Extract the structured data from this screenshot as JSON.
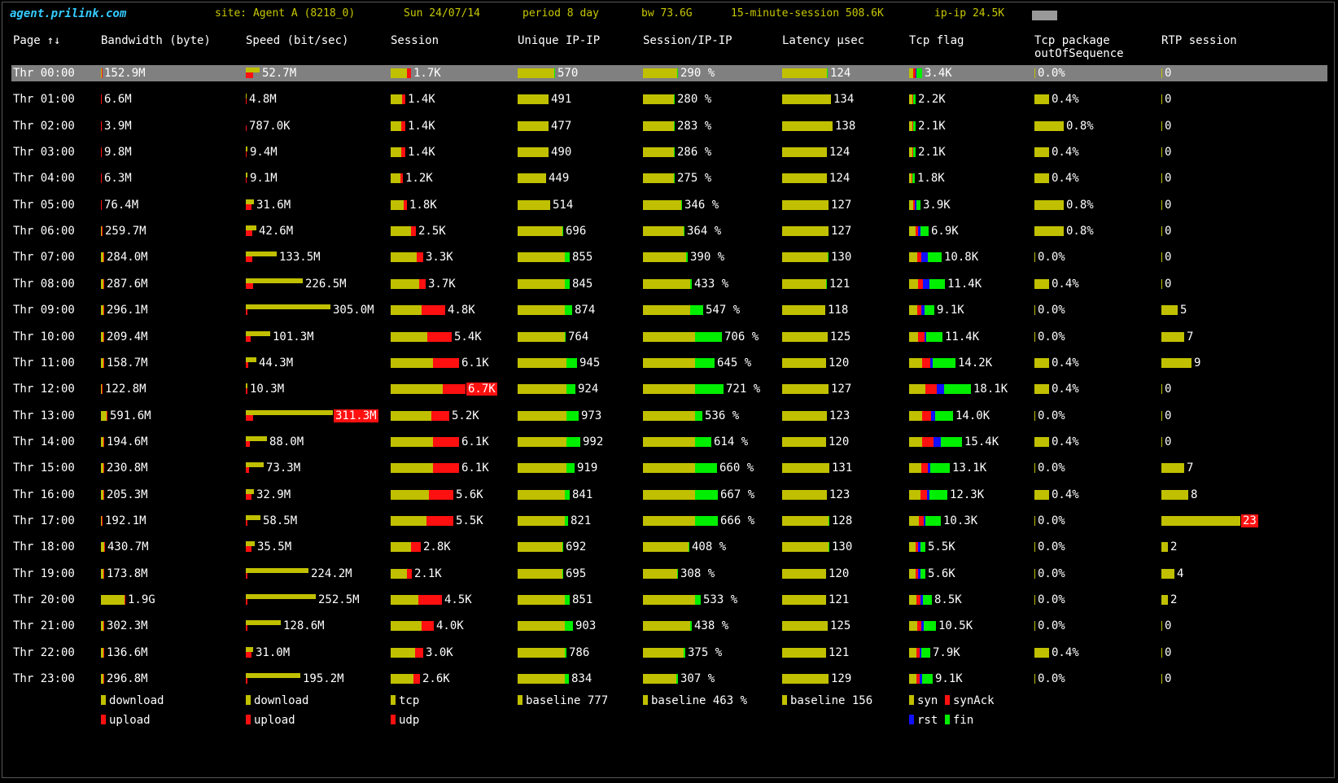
{
  "top": {
    "logo": "agent.prilink.com",
    "site": "site: Agent A (8218_0)",
    "date": "Sun 24/07/14",
    "period": "period 8 day",
    "bw": "bw 73.6G",
    "session15": "15-minute-session 508.6K",
    "ipip": "ip-ip 24.5K"
  },
  "headers": {
    "page": "Page",
    "sort_arrows": "↑↓",
    "bandwidth": "Bandwidth (byte)",
    "speed": "Speed (bit/sec)",
    "session": "Session",
    "unique": "Unique IP-IP",
    "sesipip": "Session/IP-IP",
    "latency": "Latency µsec",
    "tcpflag": "Tcp flag",
    "tcppkg1": "Tcp package",
    "tcppkg2": "outOfSequence",
    "rtp": "RTP session"
  },
  "colors": {
    "yellow": "#c0c000",
    "red": "#ff1010",
    "green": "#00ee00",
    "blue": "#1010ff"
  },
  "rows": [
    {
      "time": "Thr 00:00",
      "bw": "152.9M",
      "bw_d": 0.9,
      "bw_u": 0.1,
      "sp": "52.7M",
      "sp_d": 17,
      "sp_u": 9,
      "ses": "1.7K",
      "ses_t": 20,
      "ses_u": 5,
      "uip": "570",
      "uip_y": 45,
      "uip_g": 1,
      "sip": "290 %",
      "sip_y": 42,
      "sip_g": 1,
      "lat": "124",
      "lat_y": 55,
      "lat_g": 1,
      "tcp": [
        "5",
        "3",
        "1",
        "7"
      ],
      "tcpl": "3.4K",
      "oos": "0.0%",
      "oos_v": 0,
      "rtp": "0",
      "rtp_v": 0,
      "sel": true
    },
    {
      "time": "Thr 01:00",
      "bw": "6.6M",
      "bw_d": 0,
      "bw_u": 1,
      "sp": "4.8M",
      "sp_d": 1,
      "sp_u": 1,
      "ses": "1.4K",
      "ses_t": 14,
      "ses_u": 4,
      "uip": "491",
      "uip_y": 38,
      "uip_g": 0,
      "sip": "280 %",
      "sip_y": 38,
      "sip_g": 1,
      "lat": "134",
      "lat_y": 60,
      "lat_g": 0,
      "tcp": [
        "4",
        "1",
        "0",
        "3"
      ],
      "tcpl": "2.2K",
      "oos": "0.4%",
      "oos_v": 18,
      "rtp": "0",
      "rtp_v": 0
    },
    {
      "time": "Thr 02:00",
      "bw": "3.9M",
      "bw_d": 0,
      "bw_u": 1,
      "sp": "787.0K",
      "sp_d": 0,
      "sp_u": 1,
      "ses": "1.4K",
      "ses_t": 13,
      "ses_u": 5,
      "uip": "477",
      "uip_y": 38,
      "uip_g": 0,
      "sip": "283 %",
      "sip_y": 38,
      "sip_g": 1,
      "lat": "138",
      "lat_y": 62,
      "lat_g": 0,
      "tcp": [
        "4",
        "1",
        "0",
        "3"
      ],
      "tcpl": "2.1K",
      "oos": "0.8%",
      "oos_v": 36,
      "rtp": "0",
      "rtp_v": 0
    },
    {
      "time": "Thr 03:00",
      "bw": "9.8M",
      "bw_d": 0,
      "bw_u": 1,
      "sp": "9.4M",
      "sp_d": 2,
      "sp_u": 1,
      "ses": "1.4K",
      "ses_t": 13,
      "ses_u": 5,
      "uip": "490",
      "uip_y": 38,
      "uip_g": 0,
      "sip": "286 %",
      "sip_y": 38,
      "sip_g": 1,
      "lat": "124",
      "lat_y": 55,
      "lat_g": 0,
      "tcp": [
        "4",
        "1",
        "0",
        "3"
      ],
      "tcpl": "2.1K",
      "oos": "0.4%",
      "oos_v": 18,
      "rtp": "0",
      "rtp_v": 0
    },
    {
      "time": "Thr 04:00",
      "bw": "6.3M",
      "bw_d": 0,
      "bw_u": 1,
      "sp": "9.1M",
      "sp_d": 2,
      "sp_u": 1,
      "ses": "1.2K",
      "ses_t": 12,
      "ses_u": 3,
      "uip": "449",
      "uip_y": 35,
      "uip_g": 0,
      "sip": "275 %",
      "sip_y": 38,
      "sip_g": 1,
      "lat": "124",
      "lat_y": 55,
      "lat_g": 0,
      "tcp": [
        "3",
        "1",
        "0",
        "3"
      ],
      "tcpl": "1.8K",
      "oos": "0.4%",
      "oos_v": 18,
      "rtp": "0",
      "rtp_v": 0
    },
    {
      "time": "Thr 05:00",
      "bw": "76.4M",
      "bw_d": 0,
      "bw_u": 1,
      "sp": "31.6M",
      "sp_d": 10,
      "sp_u": 7,
      "ses": "1.8K",
      "ses_t": 16,
      "ses_u": 4,
      "uip": "514",
      "uip_y": 40,
      "uip_g": 0,
      "sip": "346 %",
      "sip_y": 47,
      "sip_g": 1,
      "lat": "127",
      "lat_y": 57,
      "lat_g": 0,
      "tcp": [
        "5",
        "2",
        "2",
        "5"
      ],
      "tcpl": "3.9K",
      "oos": "0.8%",
      "oos_v": 36,
      "rtp": "0",
      "rtp_v": 0
    },
    {
      "time": "Thr 06:00",
      "bw": "259.7M",
      "bw_d": 1,
      "bw_u": 1,
      "sp": "42.6M",
      "sp_d": 13,
      "sp_u": 8,
      "ses": "2.5K",
      "ses_t": 25,
      "ses_u": 6,
      "uip": "696",
      "uip_y": 55,
      "uip_g": 1,
      "sip": "364 %",
      "sip_y": 50,
      "sip_g": 1,
      "lat": "127",
      "lat_y": 57,
      "lat_g": 0,
      "tcp": [
        "8",
        "3",
        "3",
        "10"
      ],
      "tcpl": "6.9K",
      "oos": "0.8%",
      "oos_v": 36,
      "rtp": "0",
      "rtp_v": 0
    },
    {
      "time": "Thr 07:00",
      "bw": "284.0M",
      "bw_d": 3,
      "bw_u": 1,
      "sp": "133.5M",
      "sp_d": 38,
      "sp_u": 8,
      "ses": "3.3K",
      "ses_t": 32,
      "ses_u": 8,
      "uip": "855",
      "uip_y": 58,
      "uip_g": 6,
      "sip": "390 %",
      "sip_y": 53,
      "sip_g": 2,
      "lat": "130",
      "lat_y": 56,
      "lat_g": 1,
      "tcp": [
        "10",
        "5",
        "8",
        "17"
      ],
      "tcpl": "10.8K",
      "oos": "0.0%",
      "oos_v": 0,
      "rtp": "0",
      "rtp_v": 0
    },
    {
      "time": "Thr 08:00",
      "bw": "287.6M",
      "bw_d": 3,
      "bw_u": 1,
      "sp": "226.5M",
      "sp_d": 70,
      "sp_u": 9,
      "ses": "3.7K",
      "ses_t": 35,
      "ses_u": 8,
      "uip": "845",
      "uip_y": 58,
      "uip_g": 6,
      "sip": "433 %",
      "sip_y": 58,
      "sip_g": 2,
      "lat": "121",
      "lat_y": 54,
      "lat_g": 1,
      "tcp": [
        "11",
        "6",
        "8",
        "19"
      ],
      "tcpl": "11.4K",
      "oos": "0.4%",
      "oos_v": 18,
      "rtp": "0",
      "rtp_v": 0
    },
    {
      "time": "Thr 09:00",
      "bw": "296.1M",
      "bw_d": 3,
      "bw_u": 1,
      "sp": "305.0M",
      "sp_d": 104,
      "sp_u": 2,
      "ses": "4.8K",
      "ses_t": 38,
      "ses_u": 29,
      "uip": "874",
      "uip_y": 58,
      "uip_g": 9,
      "sip": "547 %",
      "sip_y": 58,
      "sip_g": 16,
      "lat": "118",
      "lat_y": 53,
      "lat_g": 0,
      "tcp": [
        "10",
        "5",
        "4",
        "12"
      ],
      "tcpl": "9.1K",
      "oos": "0.0%",
      "oos_v": 0,
      "rtp": "5",
      "rtp_v": 20
    },
    {
      "time": "Thr 10:00",
      "bw": "209.4M",
      "bw_d": 3,
      "bw_u": 1,
      "sp": "101.3M",
      "sp_d": 30,
      "sp_u": 6,
      "ses": "5.4K",
      "ses_t": 45,
      "ses_u": 30,
      "uip": "764",
      "uip_y": 58,
      "uip_g": 1,
      "sip": "706 %",
      "sip_y": 64,
      "sip_g": 33,
      "lat": "125",
      "lat_y": 56,
      "lat_g": 0,
      "tcp": [
        "11",
        "8",
        "2",
        "20"
      ],
      "tcpl": "11.4K",
      "oos": "0.0%",
      "oos_v": 0,
      "rtp": "7",
      "rtp_v": 28
    },
    {
      "time": "Thr 11:00",
      "bw": "158.7M",
      "bw_d": 3,
      "bw_u": 1,
      "sp": "44.3M",
      "sp_d": 13,
      "sp_u": 3,
      "ses": "6.1K",
      "ses_t": 52,
      "ses_u": 32,
      "uip": "945",
      "uip_y": 60,
      "uip_g": 13,
      "sip": "645 %",
      "sip_y": 64,
      "sip_g": 24,
      "lat": "120",
      "lat_y": 54,
      "lat_g": 0,
      "tcp": [
        "16",
        "10",
        "3",
        "28"
      ],
      "tcpl": "14.2K",
      "oos": "0.4%",
      "oos_v": 18,
      "rtp": "9",
      "rtp_v": 37
    },
    {
      "time": "Thr 12:00",
      "bw": "122.8M",
      "bw_d": 1,
      "bw_u": 1,
      "sp": "10.3M",
      "sp_d": 2,
      "sp_u": 2,
      "ses": "6.7K",
      "ses_t": 64,
      "ses_u": 28,
      "ses_hl": true,
      "uip": "924",
      "uip_y": 60,
      "uip_g": 11,
      "sip": "721 %",
      "sip_y": 64,
      "sip_g": 35,
      "lat": "127",
      "lat_y": 57,
      "lat_g": 0,
      "tcp": [
        "20",
        "14",
        "9",
        "33"
      ],
      "tcpl": "18.1K",
      "oos": "0.4%",
      "oos_v": 18,
      "rtp": "0",
      "rtp_v": 0
    },
    {
      "time": "Thr 13:00",
      "bw": "591.6M",
      "bw_d": 7,
      "bw_u": 1,
      "sp": "311.3M",
      "sp_d": 107,
      "sp_u": 9,
      "sp_hl": true,
      "ses": "5.2K",
      "ses_t": 50,
      "ses_u": 22,
      "uip": "973",
      "uip_y": 60,
      "uip_g": 15,
      "sip": "536 %",
      "sip_y": 64,
      "sip_g": 9,
      "lat": "123",
      "lat_y": 55,
      "lat_g": 0,
      "tcp": [
        "16",
        "11",
        "5",
        "22"
      ],
      "tcpl": "14.0K",
      "oos": "0.0%",
      "oos_v": 0,
      "rtp": "0",
      "rtp_v": 0
    },
    {
      "time": "Thr 14:00",
      "bw": "194.6M",
      "bw_d": 3,
      "bw_u": 1,
      "sp": "88.0M",
      "sp_d": 26,
      "sp_u": 5,
      "ses": "6.1K",
      "ses_t": 52,
      "ses_u": 32,
      "uip": "992",
      "uip_y": 60,
      "uip_g": 17,
      "sip": "614 %",
      "sip_y": 64,
      "sip_g": 20,
      "lat": "120",
      "lat_y": 54,
      "lat_g": 0,
      "tcp": [
        "16",
        "14",
        "9",
        "26"
      ],
      "tcpl": "15.4K",
      "oos": "0.4%",
      "oos_v": 18,
      "rtp": "0",
      "rtp_v": 0
    },
    {
      "time": "Thr 15:00",
      "bw": "230.8M",
      "bw_d": 3,
      "bw_u": 1,
      "sp": "73.3M",
      "sp_d": 22,
      "sp_u": 4,
      "ses": "6.1K",
      "ses_t": 52,
      "ses_u": 32,
      "uip": "919",
      "uip_y": 60,
      "uip_g": 10,
      "sip": "660 %",
      "sip_y": 64,
      "sip_g": 27,
      "lat": "131",
      "lat_y": 58,
      "lat_g": 0,
      "tcp": [
        "15",
        "8",
        "3",
        "24"
      ],
      "tcpl": "13.1K",
      "oos": "0.0%",
      "oos_v": 0,
      "rtp": "7",
      "rtp_v": 28
    },
    {
      "time": "Thr 16:00",
      "bw": "205.3M",
      "bw_d": 3,
      "bw_u": 1,
      "sp": "32.9M",
      "sp_d": 10,
      "sp_u": 7,
      "ses": "5.6K",
      "ses_t": 47,
      "ses_u": 30,
      "uip": "841",
      "uip_y": 58,
      "uip_g": 6,
      "sip": "667 %",
      "sip_y": 64,
      "sip_g": 28,
      "lat": "123",
      "lat_y": 55,
      "lat_g": 0,
      "tcp": [
        "14",
        "8",
        "3",
        "22"
      ],
      "tcpl": "12.3K",
      "oos": "0.4%",
      "oos_v": 18,
      "rtp": "8",
      "rtp_v": 33
    },
    {
      "time": "Thr 17:00",
      "bw": "192.1M",
      "bw_d": 1,
      "bw_u": 1,
      "sp": "58.5M",
      "sp_d": 18,
      "sp_u": 2,
      "ses": "5.5K",
      "ses_t": 44,
      "ses_u": 33,
      "uip": "821",
      "uip_y": 58,
      "uip_g": 4,
      "sip": "666 %",
      "sip_y": 64,
      "sip_g": 28,
      "lat": "128",
      "lat_y": 57,
      "lat_g": 1,
      "tcp": [
        "12",
        "6",
        "2",
        "19"
      ],
      "tcpl": "10.3K",
      "oos": "0.0%",
      "oos_v": 0,
      "rtp": "23",
      "rtp_v": 97,
      "rtp_hl": true
    },
    {
      "time": "Thr 18:00",
      "bw": "430.7M",
      "bw_d": 4,
      "bw_u": 1,
      "sp": "35.5M",
      "sp_d": 11,
      "sp_u": 7,
      "ses": "2.8K",
      "ses_t": 25,
      "ses_u": 12,
      "uip": "692",
      "uip_y": 55,
      "uip_g": 1,
      "sip": "408 %",
      "sip_y": 56,
      "sip_g": 1,
      "lat": "130",
      "lat_y": 57,
      "lat_g": 1,
      "tcp": [
        "8",
        "3",
        "3",
        "6"
      ],
      "tcpl": "5.5K",
      "oos": "0.0%",
      "oos_v": 0,
      "rtp": "2",
      "rtp_v": 8
    },
    {
      "time": "Thr 19:00",
      "bw": "173.8M",
      "bw_d": 3,
      "bw_u": 1,
      "sp": "224.2M",
      "sp_d": 77,
      "sp_u": 2,
      "ses": "2.1K",
      "ses_t": 20,
      "ses_u": 6,
      "uip": "695",
      "uip_y": 55,
      "uip_g": 1,
      "sip": "308 %",
      "sip_y": 42,
      "sip_g": 1,
      "lat": "120",
      "lat_y": 54,
      "lat_g": 0,
      "tcp": [
        "8",
        "3",
        "3",
        "6"
      ],
      "tcpl": "5.6K",
      "oos": "0.0%",
      "oos_v": 0,
      "rtp": "4",
      "rtp_v": 16
    },
    {
      "time": "Thr 20:00",
      "bw": "1.9G",
      "bw_d": 29,
      "bw_u": 1,
      "sp": "252.5M",
      "sp_d": 86,
      "sp_u": 2,
      "ses": "4.5K",
      "ses_t": 34,
      "ses_u": 29,
      "uip": "851",
      "uip_y": 58,
      "uip_g": 6,
      "sip": "533 %",
      "sip_y": 64,
      "sip_g": 7,
      "lat": "121",
      "lat_y": 54,
      "lat_g": 0,
      "tcp": [
        "9",
        "5",
        "3",
        "11"
      ],
      "tcpl": "8.5K",
      "oos": "0.0%",
      "oos_v": 0,
      "rtp": "2",
      "rtp_v": 8
    },
    {
      "time": "Thr 21:00",
      "bw": "302.3M",
      "bw_d": 3,
      "bw_u": 1,
      "sp": "128.6M",
      "sp_d": 43,
      "sp_u": 2,
      "ses": "4.0K",
      "ses_t": 38,
      "ses_u": 15,
      "uip": "903",
      "uip_y": 58,
      "uip_g": 10,
      "sip": "438 %",
      "sip_y": 58,
      "sip_g": 2,
      "lat": "125",
      "lat_y": 56,
      "lat_g": 0,
      "tcp": [
        "10",
        "5",
        "3",
        "15"
      ],
      "tcpl": "10.5K",
      "oos": "0.0%",
      "oos_v": 0,
      "rtp": "0",
      "rtp_v": 0
    },
    {
      "time": "Thr 22:00",
      "bw": "136.6M",
      "bw_d": 3,
      "bw_u": 1,
      "sp": "31.0M",
      "sp_d": 9,
      "sp_u": 7,
      "ses": "3.0K",
      "ses_t": 30,
      "ses_u": 10,
      "uip": "786",
      "uip_y": 58,
      "uip_g": 2,
      "sip": "375 %",
      "sip_y": 50,
      "sip_g": 2,
      "lat": "121",
      "lat_y": 54,
      "lat_g": 0,
      "tcp": [
        "9",
        "4",
        "2",
        "11"
      ],
      "tcpl": "7.9K",
      "oos": "0.4%",
      "oos_v": 18,
      "rtp": "0",
      "rtp_v": 0
    },
    {
      "time": "Thr 23:00",
      "bw": "296.8M",
      "bw_d": 3,
      "bw_u": 1,
      "sp": "195.2M",
      "sp_d": 67,
      "sp_u": 2,
      "ses": "2.6K",
      "ses_t": 28,
      "ses_u": 8,
      "uip": "834",
      "uip_y": 58,
      "uip_g": 5,
      "sip": "307 %",
      "sip_y": 41,
      "sip_g": 2,
      "lat": "129",
      "lat_y": 57,
      "lat_g": 0,
      "tcp": [
        "9",
        "4",
        "3",
        "13"
      ],
      "tcpl": "9.1K",
      "oos": "0.0%",
      "oos_v": 0,
      "rtp": "0",
      "rtp_v": 0
    }
  ],
  "legend": {
    "bw_download": "download",
    "bw_upload": "upload",
    "sp_download": "download",
    "sp_upload": "upload",
    "ses_tcp": "tcp",
    "ses_udp": "udp",
    "uip_baseline": "baseline 777",
    "sip_baseline": "baseline 463 %",
    "lat_baseline": "baseline 156",
    "tcp_syn": "syn",
    "tcp_synack": "synAck",
    "tcp_rst": "rst",
    "tcp_fin": "fin"
  }
}
